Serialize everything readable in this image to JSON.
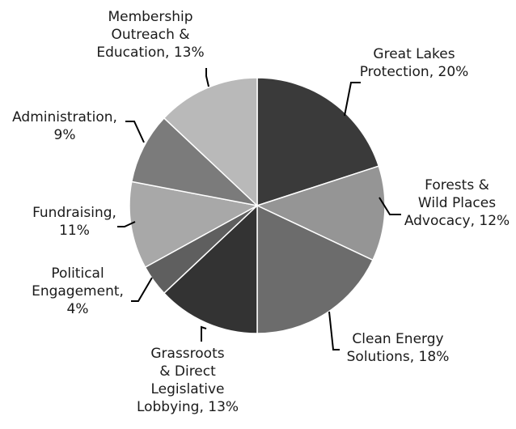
{
  "chart_data": {
    "type": "pie",
    "start": "top, clockwise",
    "slices": [
      {
        "lines": [
          "Great Lakes",
          "Protection, 20%"
        ],
        "label": "Great Lakes Protection",
        "value": 20,
        "color": "#3a3a3a"
      },
      {
        "lines": [
          "Forests &",
          "Wild Places",
          "Advocacy, 12%"
        ],
        "label": "Forests & Wild Places Advocacy",
        "value": 12,
        "color": "#959595"
      },
      {
        "lines": [
          "Clean Energy",
          "Solutions, 18%"
        ],
        "label": "Clean Energy Solutions",
        "value": 18,
        "color": "#6c6c6c"
      },
      {
        "lines": [
          "Grassroots",
          "& Direct",
          "Legislative",
          "Lobbying, 13%"
        ],
        "label": "Grassroots & Direct Legislative Lobbying",
        "value": 13,
        "color": "#333333"
      },
      {
        "lines": [
          "Political",
          "Engagement,",
          "4%"
        ],
        "label": "Political Engagement",
        "value": 4,
        "color": "#5f5f5f"
      },
      {
        "lines": [
          "Fundraising,",
          "11%"
        ],
        "label": "Fundraising",
        "value": 11,
        "color": "#a8a8a8"
      },
      {
        "lines": [
          "Administration,",
          "9%"
        ],
        "label": "Administration",
        "value": 9,
        "color": "#7b7b7b"
      },
      {
        "lines": [
          "Membership",
          "Outreach &",
          "Education, 13%"
        ],
        "label": "Membership Outreach & Education",
        "value": 13,
        "color": "#b9b9b9"
      }
    ]
  }
}
